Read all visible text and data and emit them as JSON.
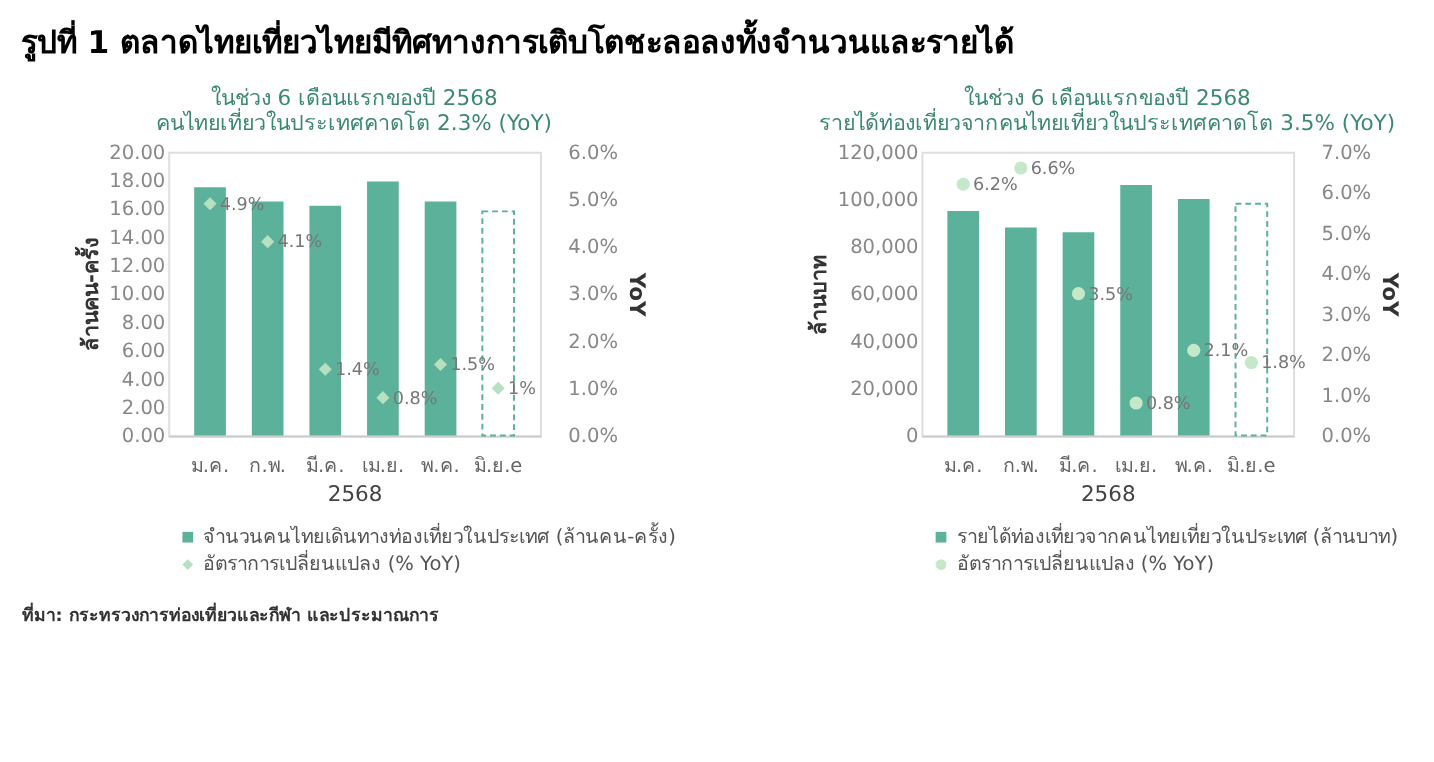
{
  "chart_data": [
    {
      "type": "bar",
      "title": "รูปที่ 1 ตลาดไทยเที่ยวไทยมีทิศทางการเติบโตชะลอลงทั้งจำนวนและรายได้",
      "subtitle": "ในช่วง 6 เดือนแรกของปี 2568\nคนไทยเที่ยวในประเทศคาดโต 2.3% (YoY)",
      "xlabel": "2568",
      "ylabel": "ล้านคน-ครั้ง",
      "y2label": "YoY",
      "categories": [
        "ม.ค.",
        "ก.พ.",
        "มี.ค.",
        "เม.ย.",
        "พ.ค.",
        "มิ.ย.e"
      ],
      "series": [
        {
          "type": "bar",
          "name": "จำนวนคนไทยเดินทางท่องเที่ยวในประเทศ (ล้านคน-ครั้ง)",
          "color": "#5bb19a",
          "values": [
            17.5,
            16.5,
            16.2,
            17.9,
            16.5,
            null
          ]
        },
        {
          "type": "bar",
          "color": "#5bb19a",
          "line_style": "dashed",
          "values": [
            null,
            null,
            null,
            null,
            null,
            15.8
          ]
        },
        {
          "type": "scatter",
          "name": "อัตราการเปลี่ยนแปลง (% YoY)",
          "axis": "y2",
          "marker": "diamond",
          "color": "#b7e0c0",
          "values": [
            4.9,
            4.1,
            1.4,
            0.8,
            1.5,
            1
          ],
          "value_labels": [
            "4.9%",
            "4.1%",
            "1.4%",
            "0.8%",
            "1.5%",
            "1%"
          ]
        }
      ],
      "ylim": [
        0,
        20
      ],
      "yticks": [
        {
          "value": 0,
          "label": "0.00"
        },
        {
          "value": 2,
          "label": "2.00"
        },
        {
          "value": 4,
          "label": "4.00"
        },
        {
          "value": 6,
          "label": "6.00"
        },
        {
          "value": 8,
          "label": "8.00"
        },
        {
          "value": 10,
          "label": "10.00"
        },
        {
          "value": 12,
          "label": "12.00"
        },
        {
          "value": 14,
          "label": "14.00"
        },
        {
          "value": 16,
          "label": "16.00"
        },
        {
          "value": 18,
          "label": "18.00"
        },
        {
          "value": 20,
          "label": "20.00"
        }
      ],
      "y2lim": [
        0,
        6
      ],
      "y2ticks": [
        {
          "value": 0,
          "label": "0.0%"
        },
        {
          "value": 1,
          "label": "1.0%"
        },
        {
          "value": 2,
          "label": "2.0%"
        },
        {
          "value": 3,
          "label": "3.0%"
        },
        {
          "value": 4,
          "label": "4.0%"
        },
        {
          "value": 5,
          "label": "5.0%"
        },
        {
          "value": 6,
          "label": "6.0%"
        }
      ],
      "grid": false,
      "legend": "bottom",
      "annotations": [
        "ที่มา: กระทรวงการท่องเที่ยวและกีฬา และประมาณการ"
      ]
    },
    {
      "type": "bar",
      "subtitle": "ในช่วง 6 เดือนแรกของปี 2568\nรายได้ท่องเที่ยวจากคนไทยเที่ยวในประเทศคาดโต 3.5% (YoY)",
      "xlabel": "2568",
      "ylabel": "ล้านบาท",
      "y2label": "YoY",
      "categories": [
        "ม.ค.",
        "ก.พ.",
        "มี.ค.",
        "เม.ย.",
        "พ.ค.",
        "มิ.ย.e"
      ],
      "series": [
        {
          "type": "bar",
          "name": "รายได้ท่องเที่ยวจากคนไทยเที่ยวในประเทศ (ล้านบาท)",
          "color": "#5bb19a",
          "values": [
            95000,
            88000,
            86000,
            106000,
            100000,
            null
          ]
        },
        {
          "type": "bar",
          "color": "#5bb19a",
          "line_style": "dashed",
          "values": [
            null,
            null,
            null,
            null,
            null,
            98000
          ]
        },
        {
          "type": "scatter",
          "name": "อัตราการเปลี่ยนแปลง (% YoY)",
          "axis": "y2",
          "marker": "circle",
          "color": "#c5e8c8",
          "values": [
            6.2,
            6.6,
            3.5,
            0.8,
            2.1,
            1.8
          ],
          "value_labels": [
            "6.2%",
            "6.6%",
            "3.5%",
            "0.8%",
            "2.1%",
            "1.8%"
          ]
        }
      ],
      "ylim": [
        0,
        120000
      ],
      "yticks": [
        0,
        {
          "value": 20000,
          "label": "20,000"
        },
        {
          "value": 40000,
          "label": "40,000"
        },
        {
          "value": 60000,
          "label": "60,000"
        },
        {
          "value": 80000,
          "label": "80,000"
        },
        {
          "value": 100000,
          "label": "100,000"
        },
        {
          "value": 120000,
          "label": "120,000"
        }
      ],
      "y2lim": [
        0,
        7
      ],
      "y2ticks": [
        {
          "value": 0,
          "label": "0.0%"
        },
        {
          "value": 1,
          "label": "1.0%"
        },
        {
          "value": 2,
          "label": "2.0%"
        },
        {
          "value": 3,
          "label": "3.0%"
        },
        {
          "value": 4,
          "label": "4.0%"
        },
        {
          "value": 5,
          "label": "5.0%"
        },
        {
          "value": 6,
          "label": "6.0%"
        },
        {
          "value": 7,
          "label": "7.0%"
        }
      ],
      "grid": false,
      "legend": "bottom"
    }
  ]
}
